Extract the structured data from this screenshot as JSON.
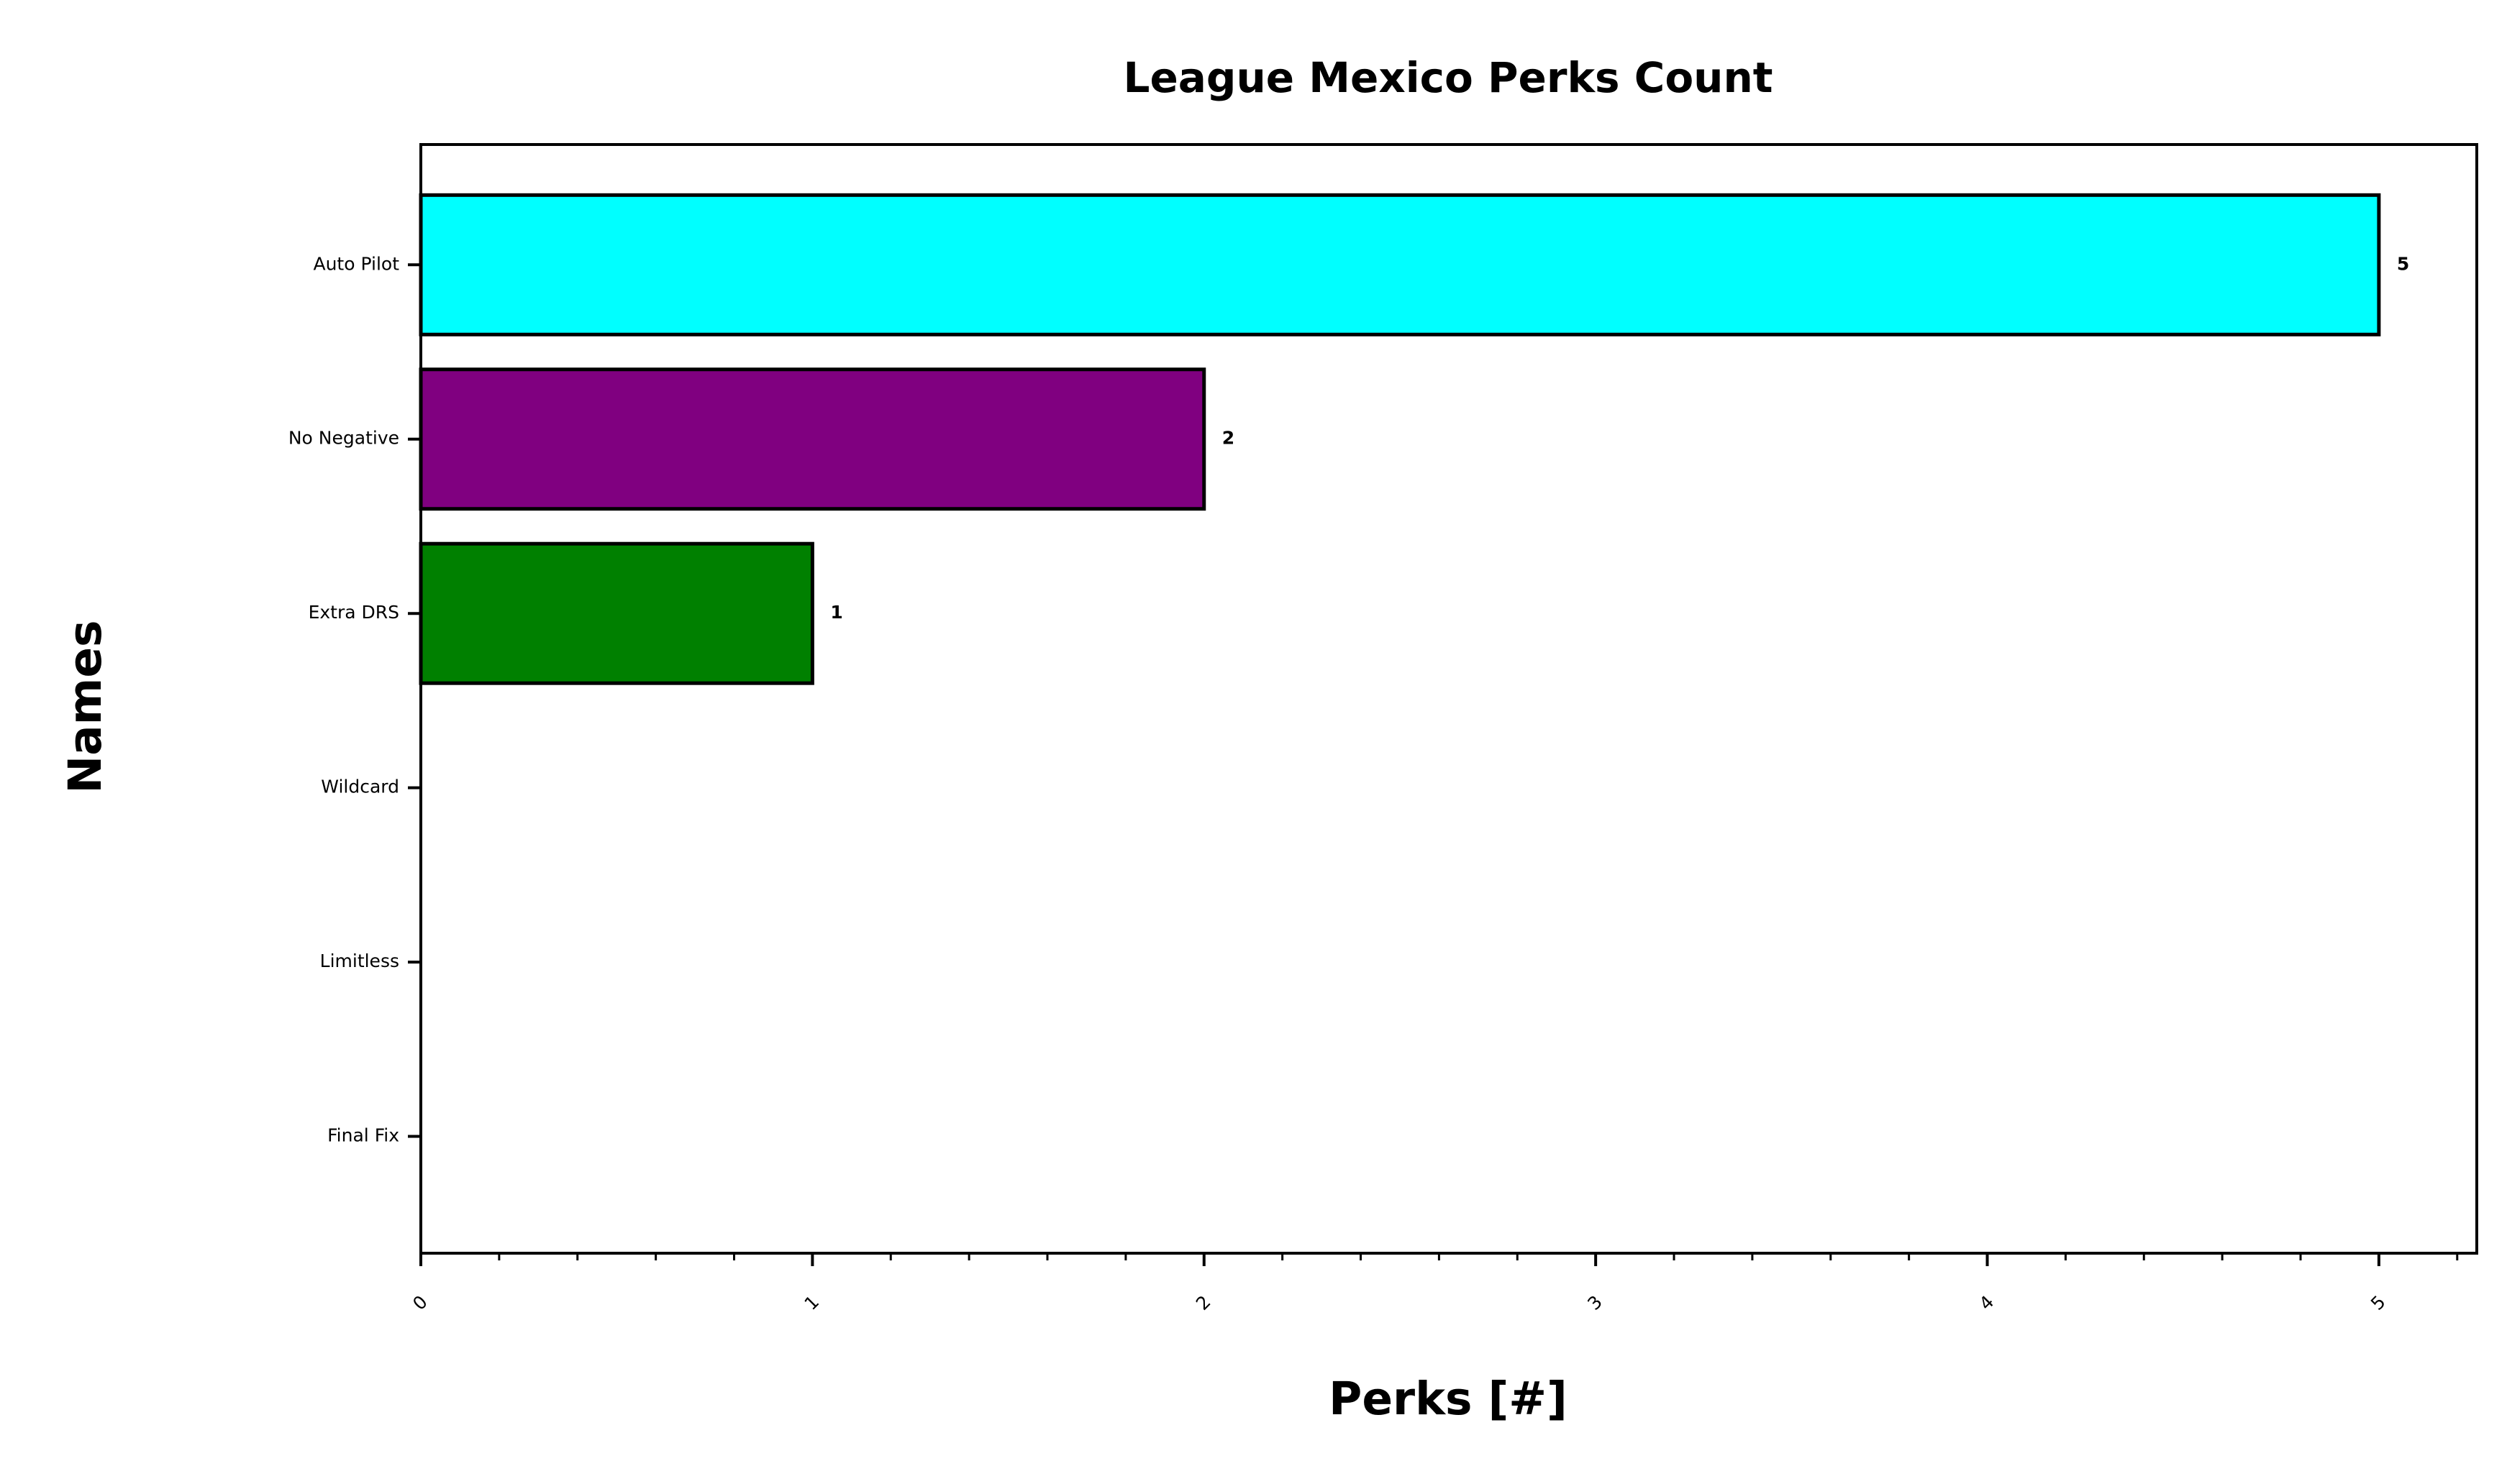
{
  "chart_data": {
    "type": "barh",
    "title": "League Mexico Perks Count",
    "xlabel": "Perks [#]",
    "ylabel": "Names",
    "categories": [
      "Auto Pilot",
      "No Negative",
      "Extra DRS",
      "Wildcard",
      "Limitless",
      "Final Fix"
    ],
    "values": [
      5,
      2,
      1,
      0,
      0,
      0
    ],
    "colors": [
      "#00ffff",
      "#800080",
      "#008000"
    ],
    "xlim": [
      0,
      5.25
    ],
    "xticks": [
      0,
      1,
      2,
      3,
      4,
      5
    ]
  }
}
